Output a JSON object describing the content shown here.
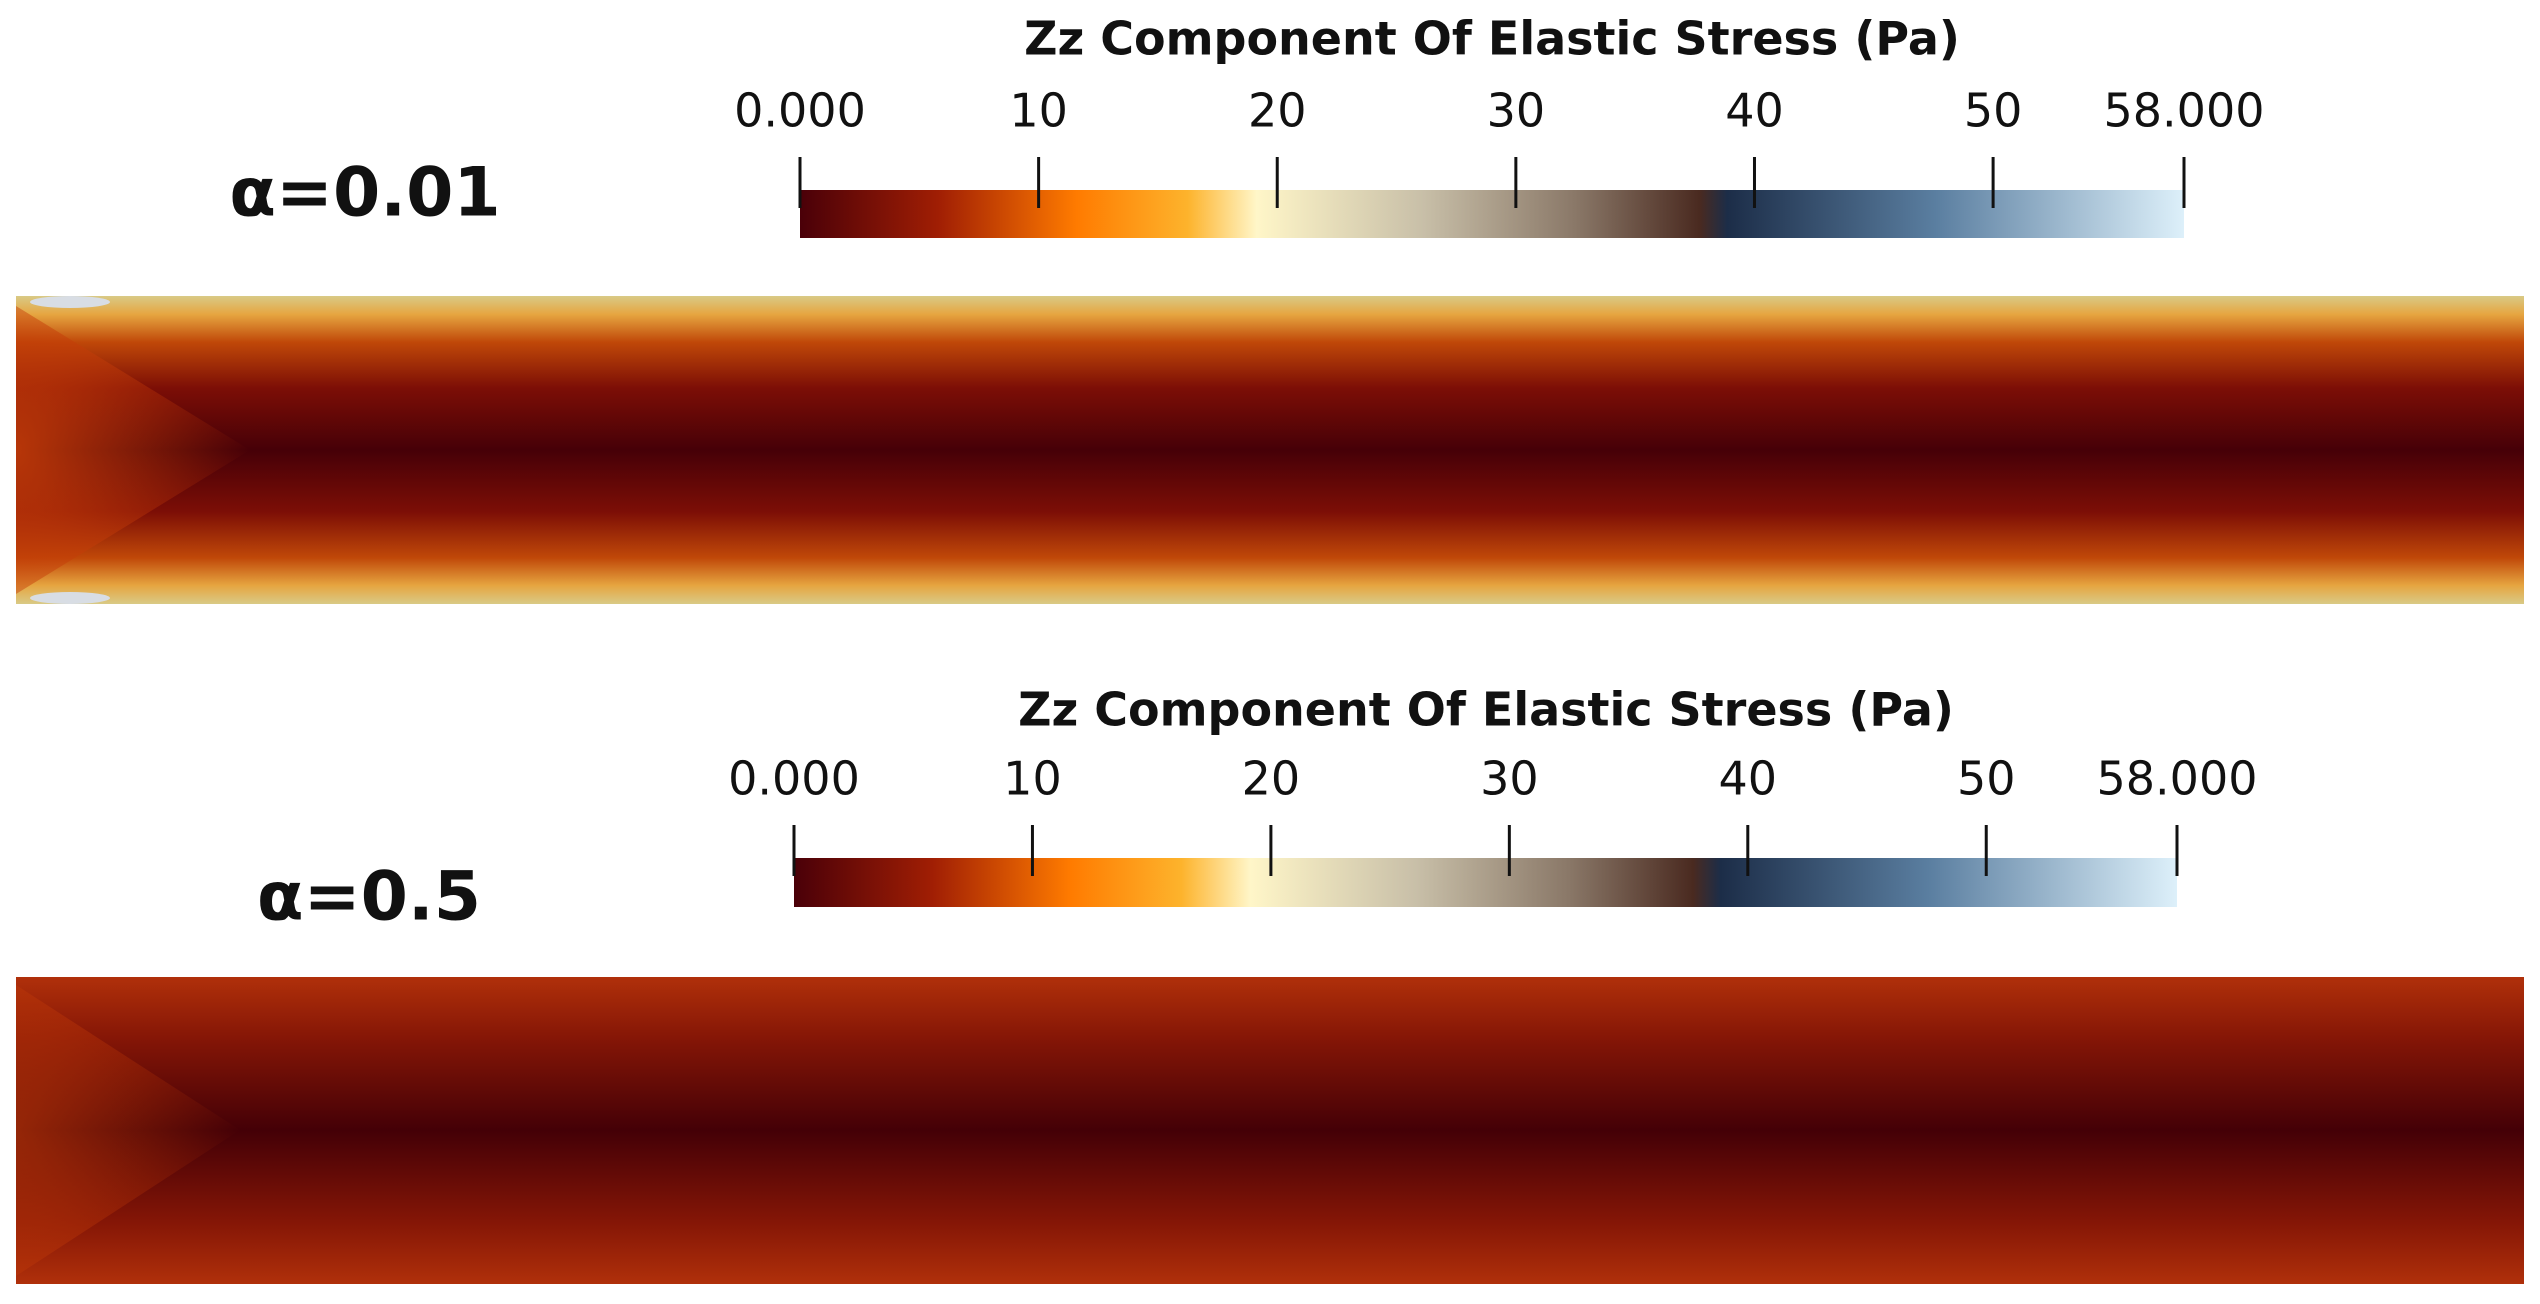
{
  "panels": [
    {
      "label": "α=0.01",
      "colorbar": {
        "title": "Zz Component Of Elastic Stress (Pa)",
        "range": [
          0,
          58
        ],
        "ticks": [
          {
            "value": 0,
            "label": "0.000"
          },
          10,
          20,
          30,
          40,
          50,
          {
            "value": 58,
            "label": "58.000"
          }
        ]
      }
    },
    {
      "label": "α=0.5",
      "colorbar": {
        "title": "Zz Component Of Elastic Stress (Pa)",
        "range": [
          0,
          58
        ],
        "ticks": [
          {
            "value": 0,
            "label": "0.000"
          },
          10,
          20,
          30,
          40,
          50,
          {
            "value": 58,
            "label": "58.000"
          }
        ]
      }
    }
  ]
}
